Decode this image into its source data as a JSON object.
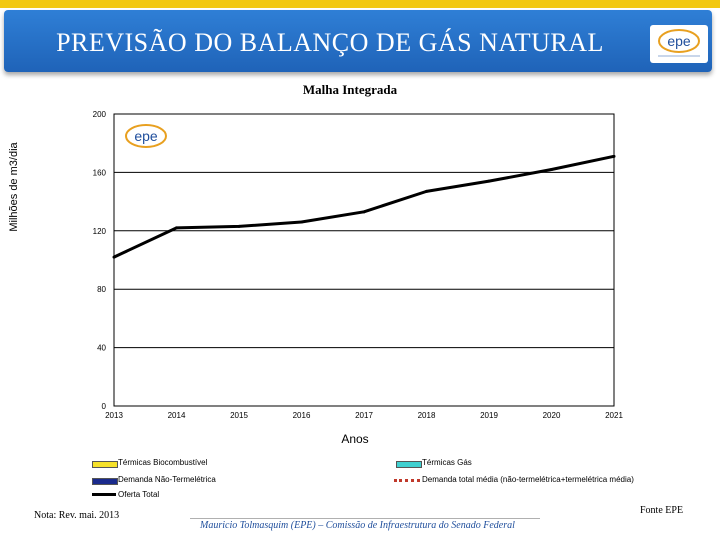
{
  "slide": {
    "title": "PREVISÃO DO BALANÇO DE GÁS NATURAL",
    "note": "Nota: Rev. mai. 2013",
    "footer": "Mauricio Tolmasquim (EPE) – Comissão de Infraestrutura do Senado Federal",
    "source": "Fonte EPE",
    "logo_text": "epe",
    "colors": {
      "banner": "#2a74cc",
      "accent_bar": "#f2c811"
    }
  },
  "chart_data": {
    "type": "line",
    "title": "Malha Integrada",
    "xlabel": "Anos",
    "ylabel": "Milhões de m3/dia",
    "categories": [
      "2013",
      "2014",
      "2015",
      "2016",
      "2017",
      "2018",
      "2019",
      "2020",
      "2021"
    ],
    "yticks": [
      "0",
      "40",
      "80",
      "120",
      "160",
      "200"
    ],
    "ylim": [
      0,
      200
    ],
    "grid": true,
    "legend_position": "bottom",
    "series": [
      {
        "name": "Oferta Total",
        "color": "#000000",
        "values": [
          102,
          122,
          123,
          126,
          133,
          147,
          154,
          162,
          171
        ]
      }
    ],
    "legend": [
      {
        "label": "Térmicas Biocombustível",
        "color": "#f5e12a",
        "style": "box"
      },
      {
        "label": "Térmicas Gás",
        "color": "#40d0d0",
        "style": "box"
      },
      {
        "label": "Demanda Não-Termelétrica",
        "color": "#1a2a8c",
        "style": "box"
      },
      {
        "label": "Demanda total média (não-termelétrica+termelétrica média)",
        "color": "#c0392b",
        "style": "dotted"
      },
      {
        "label": "Oferta Total",
        "color": "#000000",
        "style": "line"
      }
    ],
    "watermark_text": "epe"
  }
}
